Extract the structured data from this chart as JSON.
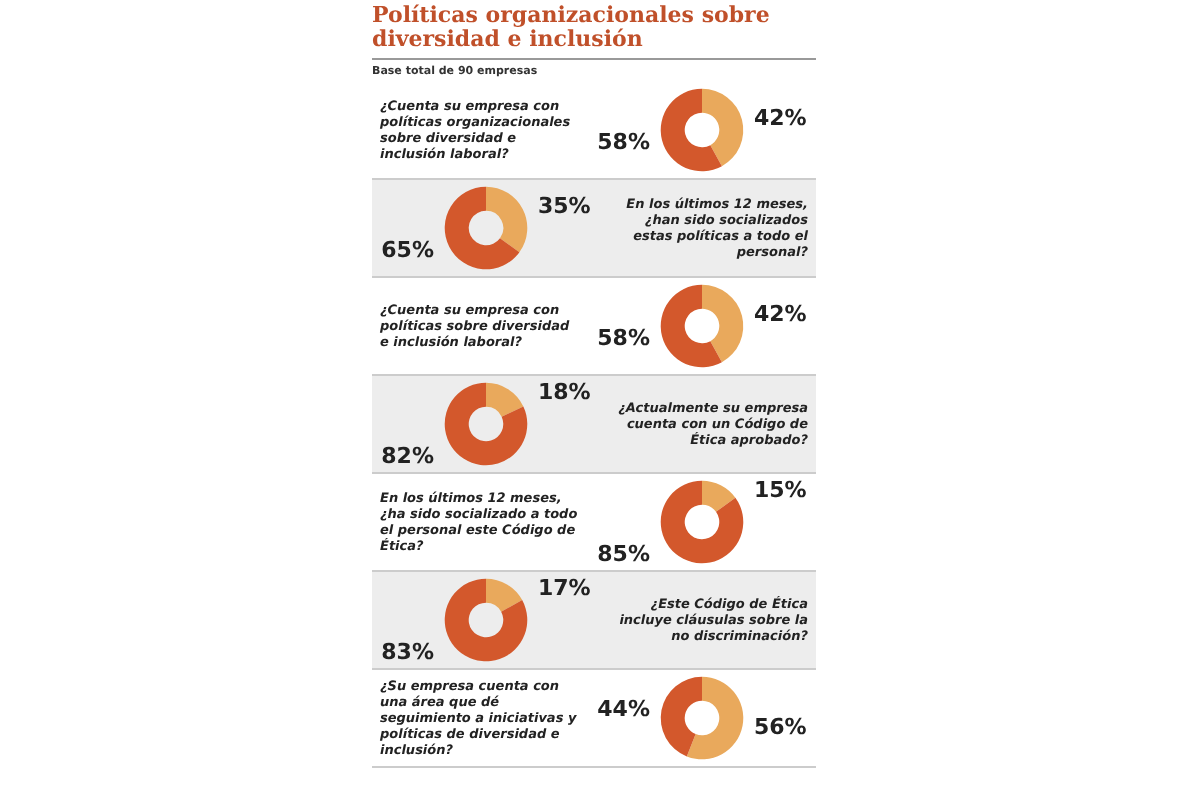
{
  "chart_data": [
    {
      "type": "donut",
      "title": "Políticas organizacionales sobre diversidad e inclusión",
      "subtitle": "Base total de 90 empresas",
      "annotations": [
        "¿Cuenta su empresa con políticas organizacionales sobre diversidad e inclusión laboral?"
      ],
      "categories": [
        null,
        null
      ],
      "values": [
        42,
        58
      ],
      "colors": [
        "#e9a95c",
        "#d3582c"
      ],
      "value_labels": [
        "42%",
        "58%"
      ]
    },
    {
      "type": "donut",
      "annotations": [
        "En los últimos 12 meses, ¿han sido socializados estas políticas a todo el personal?"
      ],
      "categories": [
        null,
        null
      ],
      "values": [
        35,
        65
      ],
      "colors": [
        "#e9a95c",
        "#d3582c"
      ],
      "value_labels": [
        "35%",
        "65%"
      ]
    },
    {
      "type": "donut",
      "annotations": [
        "¿Cuenta su empresa con políticas sobre diversidad e inclusión laboral?"
      ],
      "categories": [
        null,
        null
      ],
      "values": [
        42,
        58
      ],
      "colors": [
        "#e9a95c",
        "#d3582c"
      ],
      "value_labels": [
        "42%",
        "58%"
      ]
    },
    {
      "type": "donut",
      "annotations": [
        "¿Actualmente su empresa cuenta con un Código de Ética aprobado?"
      ],
      "categories": [
        null,
        null
      ],
      "values": [
        18,
        82
      ],
      "colors": [
        "#e9a95c",
        "#d3582c"
      ],
      "value_labels": [
        "18%",
        "82%"
      ]
    },
    {
      "type": "donut",
      "annotations": [
        "En los últimos 12 meses, ¿ha sido socializado a todo el personal este Código de Ética?"
      ],
      "categories": [
        null,
        null
      ],
      "values": [
        15,
        85
      ],
      "colors": [
        "#e9a95c",
        "#d3582c"
      ],
      "value_labels": [
        "15%",
        "85%"
      ]
    },
    {
      "type": "donut",
      "annotations": [
        "¿Este Código de Ética incluye cláusulas sobre la no discriminación?"
      ],
      "categories": [
        null,
        null
      ],
      "values": [
        17,
        83
      ],
      "colors": [
        "#e9a95c",
        "#d3582c"
      ],
      "value_labels": [
        "17%",
        "83%"
      ]
    },
    {
      "type": "donut",
      "annotations": [
        "¿Su empresa cuenta con una área que dé seguimiento a iniciativas y políticas de diversidad e inclusión?"
      ],
      "categories": [
        null,
        null
      ],
      "values": [
        56,
        44
      ],
      "colors": [
        "#e9a95c",
        "#d3582c"
      ],
      "value_labels": [
        "56%",
        "44%"
      ]
    }
  ]
}
